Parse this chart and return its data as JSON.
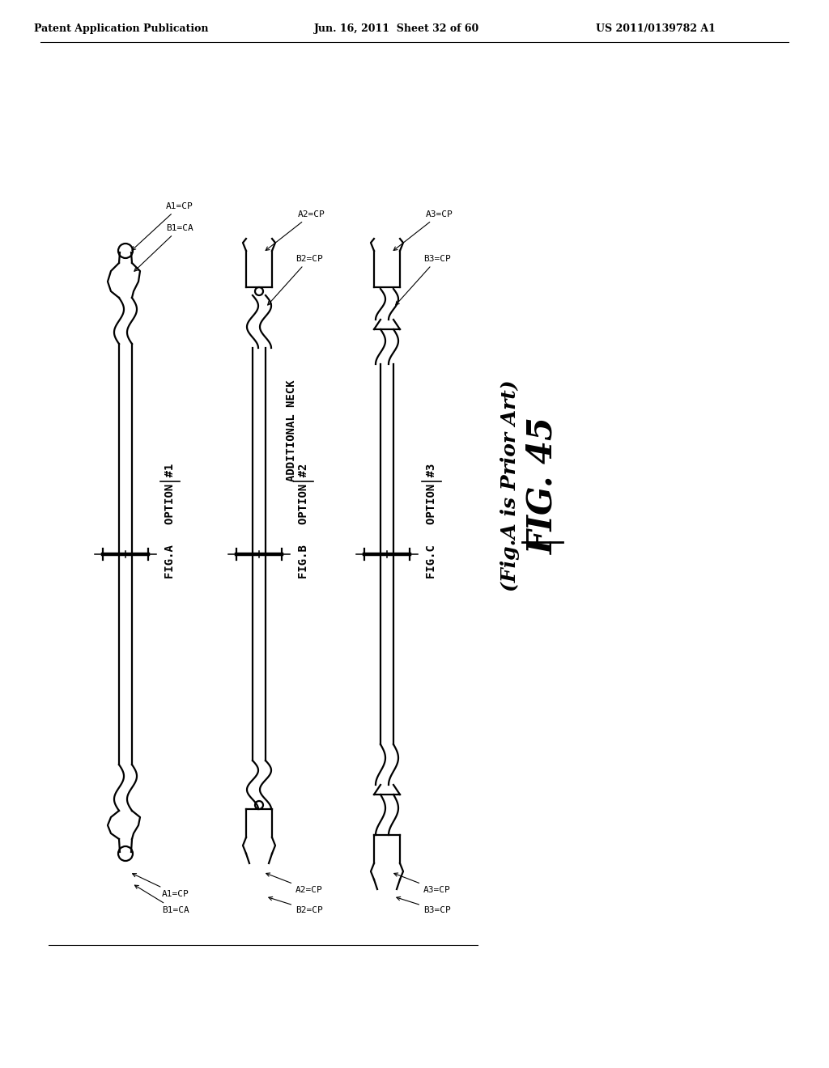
{
  "background_color": "#ffffff",
  "header_left": "Patent Application Publication",
  "header_center": "Jun. 16, 2011  Sheet 32 of 60",
  "header_right": "US 2011/0139782 A1",
  "figure_title": "FIG. 45",
  "figure_subtitle": "(Fig.A is Prior Art)",
  "text_color": "#000000",
  "line_color": "#000000"
}
